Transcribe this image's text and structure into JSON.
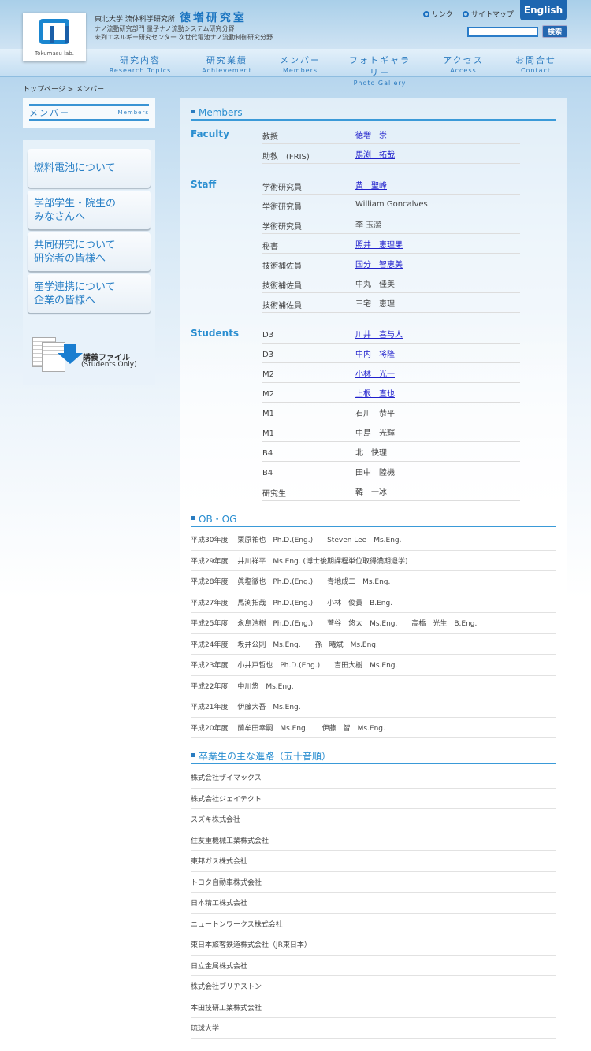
{
  "header": {
    "logo_text": "Tokumasu lab.",
    "university": "東北大学 流体科学研究所",
    "lab_name": "徳増研究室",
    "subtitle1": "ナノ流動研究部門 量子ナノ流動システム研究分野",
    "subtitle2": "未到エネルギー研究センター 次世代電池ナノ流動制御研究分野",
    "links": [
      "リンク",
      "サイトマップ"
    ],
    "english_label": "English",
    "search_value": "",
    "search_button": "検索"
  },
  "nav": [
    {
      "jp": "研究内容",
      "en": "Research Topics"
    },
    {
      "jp": "研究業績",
      "en": "Achievement"
    },
    {
      "jp": "メンバー",
      "en": "Members"
    },
    {
      "jp": "フォトギャラリー",
      "en": "Photo Gallery"
    },
    {
      "jp": "アクセス",
      "en": "Access"
    },
    {
      "jp": "お問合せ",
      "en": "Contact"
    }
  ],
  "breadcrumb": "トップページ > メンバー",
  "sidebar": {
    "title_jp": "メンバー",
    "title_en": "Members",
    "buttons": [
      [
        "燃料電池について"
      ],
      [
        "学部学生・院生の",
        "みなさんへ"
      ],
      [
        "共同研究について",
        "研究者の皆様へ"
      ],
      [
        "産学連携について",
        "企業の皆様へ"
      ]
    ],
    "file_title": "講義ファイル",
    "file_sub": "(Students Only)"
  },
  "members": {
    "heading": "Members",
    "groups": [
      {
        "label": "Faculty",
        "rows": [
          {
            "role": "教授",
            "name": "徳増　崇",
            "link": true
          },
          {
            "role": "助教　(FRIS)",
            "name": "馬渕　拓哉",
            "link": true
          }
        ]
      },
      {
        "label": "Staff",
        "rows": [
          {
            "role": "学術研究員",
            "name": "黄　聖峰",
            "link": true
          },
          {
            "role": "学術研究員",
            "name": "William Goncalves",
            "link": false
          },
          {
            "role": "学術研究員",
            "name": "李 玉潔",
            "link": false
          },
          {
            "role": "秘書",
            "name": "照井　恵理果",
            "link": true
          },
          {
            "role": "技術補佐員",
            "name": "国分　智恵美",
            "link": true
          },
          {
            "role": "技術補佐員",
            "name": "中丸　佳美",
            "link": false
          },
          {
            "role": "技術補佐員",
            "name": "三宅　恵理",
            "link": false
          }
        ]
      },
      {
        "label": "Students",
        "rows": [
          {
            "role": "D3",
            "name": "川井　喜与人",
            "link": true
          },
          {
            "role": "D3",
            "name": "中内　将隆",
            "link": true
          },
          {
            "role": "M2",
            "name": "小林　光一",
            "link": true
          },
          {
            "role": "M2",
            "name": "上根　直也",
            "link": true
          },
          {
            "role": "M1",
            "name": "石川　恭平",
            "link": false
          },
          {
            "role": "M1",
            "name": "中島　光輝",
            "link": false
          },
          {
            "role": "B4",
            "name": "北　快理",
            "link": false
          },
          {
            "role": "B4",
            "name": "田中　陸機",
            "link": false
          },
          {
            "role": "研究生",
            "name": "韓　一冰",
            "link": false
          }
        ]
      }
    ]
  },
  "alumni": {
    "heading": "OB・OG",
    "items": [
      "平成30年度　 栗原祐也　Ph.D.(Eng.)　　Steven Lee　Ms.Eng.",
      "平成29年度　 井川祥平　Ms.Eng. (博士後期課程単位取得満期退学)",
      "平成28年度　 眞塩徹也　Ph.D.(Eng.)　　青地成二　Ms.Eng.",
      "平成27年度　 馬渕拓哉　Ph.D.(Eng.)　　小林　俊貴　B.Eng.",
      "平成25年度　 永島浩樹　Ph.D.(Eng.)　　菅谷　悠太　Ms.Eng.　　高橋　光生　B.Eng.",
      "平成24年度　 坂井公則　Ms.Eng.　　孫　曦斌　Ms.Eng.",
      "平成23年度　 小井戸哲也　Ph.D.(Eng.)　　吉田大樹　Ms.Eng.",
      "平成22年度　 中川悠　Ms.Eng.",
      "平成21年度　 伊藤大吾　Ms.Eng.",
      "平成20年度　 蘭牟田幸嗣　Ms.Eng.　　伊藤　智　Ms.Eng."
    ]
  },
  "careers": {
    "heading": "卒業生の主な進路（五十音順）",
    "items": [
      "株式会社ザイマックス",
      "株式会社ジェイテクト",
      "スズキ株式会社",
      "住友重機械工業株式会社",
      "東邦ガス株式会社",
      "トヨタ自動車株式会社",
      "日本精工株式会社",
      "ニュートンワークス株式会社",
      "東日本旅客鉄道株式会社（JR東日本）",
      "日立金属株式会社",
      "株式会社ブリヂストン",
      "本田技研工業株式会社",
      "琉球大学"
    ]
  }
}
